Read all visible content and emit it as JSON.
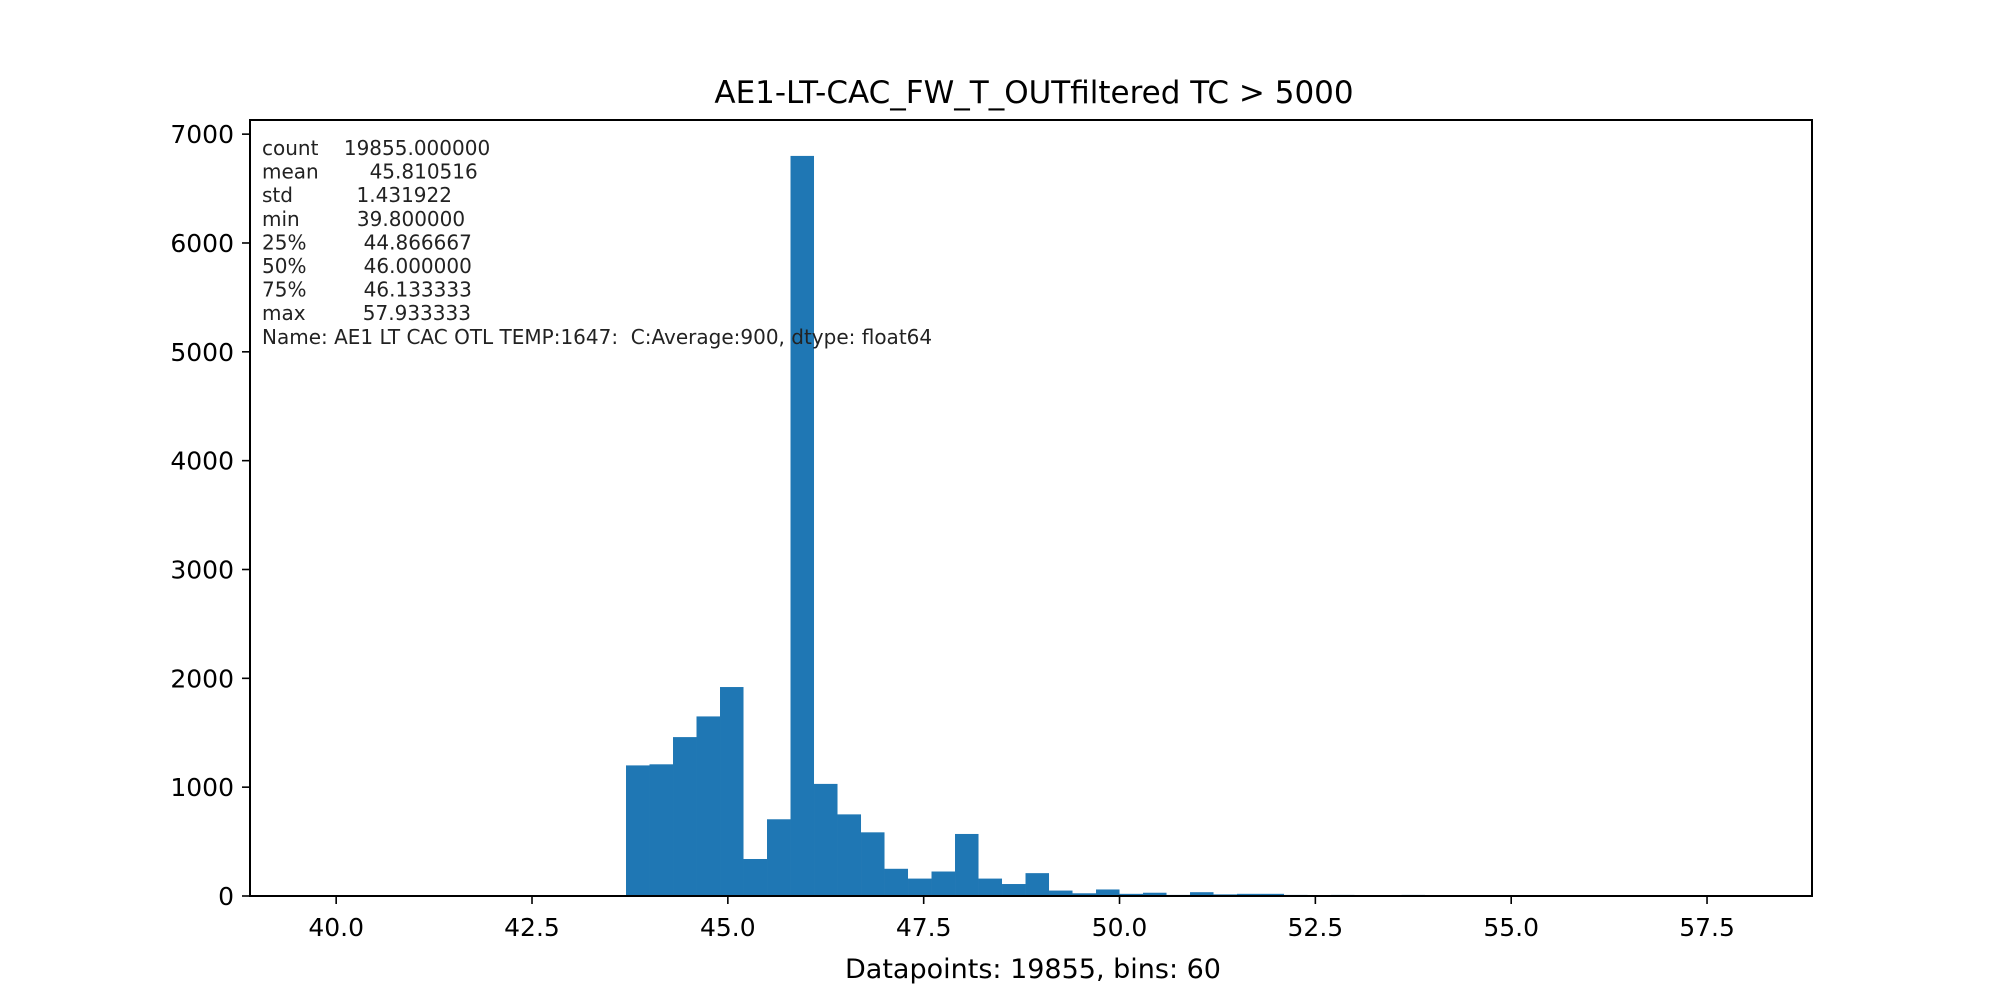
{
  "chart_data": {
    "type": "bar",
    "title": "AE1-LT-CAC_FW_T_OUTfiltered TC > 5000",
    "xlabel": "Datapoints: 19855, bins: 60",
    "ylabel": "",
    "xlim": [
      38.9,
      58.84
    ],
    "ylim": [
      0,
      7130
    ],
    "bar_color": "#1f77b4",
    "grid": false,
    "x_ticks": [
      {
        "value": 40.0,
        "label": "40.0"
      },
      {
        "value": 42.5,
        "label": "42.5"
      },
      {
        "value": 45.0,
        "label": "45.0"
      },
      {
        "value": 47.5,
        "label": "47.5"
      },
      {
        "value": 50.0,
        "label": "50.0"
      },
      {
        "value": 52.5,
        "label": "52.5"
      },
      {
        "value": 55.0,
        "label": "55.0"
      },
      {
        "value": 57.5,
        "label": "57.5"
      }
    ],
    "y_ticks": [
      {
        "value": 0,
        "label": "0"
      },
      {
        "value": 1000,
        "label": "1000"
      },
      {
        "value": 2000,
        "label": "2000"
      },
      {
        "value": 3000,
        "label": "3000"
      },
      {
        "value": 4000,
        "label": "4000"
      },
      {
        "value": 5000,
        "label": "5000"
      },
      {
        "value": 6000,
        "label": "6000"
      },
      {
        "value": 7000,
        "label": "7000"
      }
    ],
    "bins": [
      {
        "x0": 43.7,
        "x1": 44.0,
        "value": 1200
      },
      {
        "x0": 44.0,
        "x1": 44.3,
        "value": 1210
      },
      {
        "x0": 44.3,
        "x1": 44.6,
        "value": 1460
      },
      {
        "x0": 44.6,
        "x1": 44.9,
        "value": 1650
      },
      {
        "x0": 44.9,
        "x1": 45.2,
        "value": 1920
      },
      {
        "x0": 45.2,
        "x1": 45.5,
        "value": 340
      },
      {
        "x0": 45.5,
        "x1": 45.8,
        "value": 705
      },
      {
        "x0": 45.8,
        "x1": 46.1,
        "value": 6800
      },
      {
        "x0": 46.1,
        "x1": 46.4,
        "value": 1030
      },
      {
        "x0": 46.4,
        "x1": 46.7,
        "value": 750
      },
      {
        "x0": 46.7,
        "x1": 47.0,
        "value": 585
      },
      {
        "x0": 47.0,
        "x1": 47.3,
        "value": 250
      },
      {
        "x0": 47.3,
        "x1": 47.6,
        "value": 160
      },
      {
        "x0": 47.6,
        "x1": 47.9,
        "value": 225
      },
      {
        "x0": 47.9,
        "x1": 48.2,
        "value": 570
      },
      {
        "x0": 48.2,
        "x1": 48.5,
        "value": 160
      },
      {
        "x0": 48.5,
        "x1": 48.8,
        "value": 110
      },
      {
        "x0": 48.8,
        "x1": 49.1,
        "value": 210
      },
      {
        "x0": 49.1,
        "x1": 49.4,
        "value": 50
      },
      {
        "x0": 49.4,
        "x1": 49.7,
        "value": 25
      },
      {
        "x0": 49.7,
        "x1": 50.0,
        "value": 60
      },
      {
        "x0": 50.0,
        "x1": 50.3,
        "value": 20
      },
      {
        "x0": 50.3,
        "x1": 50.6,
        "value": 30
      },
      {
        "x0": 50.6,
        "x1": 50.9,
        "value": 10
      },
      {
        "x0": 50.9,
        "x1": 51.2,
        "value": 35
      },
      {
        "x0": 51.2,
        "x1": 51.5,
        "value": 15
      },
      {
        "x0": 51.5,
        "x1": 51.8,
        "value": 20
      },
      {
        "x0": 51.8,
        "x1": 52.1,
        "value": 20
      },
      {
        "x0": 52.1,
        "x1": 52.4,
        "value": 10
      },
      {
        "x0": 52.4,
        "x1": 52.7,
        "value": 5
      },
      {
        "x0": 52.7,
        "x1": 53.0,
        "value": 10
      },
      {
        "x0": 53.0,
        "x1": 53.3,
        "value": 5
      },
      {
        "x0": 53.3,
        "x1": 53.6,
        "value": 3
      },
      {
        "x0": 53.6,
        "x1": 53.9,
        "value": 10
      },
      {
        "x0": 53.9,
        "x1": 54.2,
        "value": 3
      },
      {
        "x0": 57.6,
        "x1": 57.9,
        "value": 2
      }
    ],
    "annotation": {
      "lines": [
        "count    19855.000000",
        "mean        45.810516",
        "std          1.431922",
        "min         39.800000",
        "25%         44.866667",
        "50%         46.000000",
        "75%         46.133333",
        "max         57.933333",
        "Name: AE1 LT CAC OTL TEMP:1647:  C:Average:900, dtype: float64"
      ]
    }
  }
}
